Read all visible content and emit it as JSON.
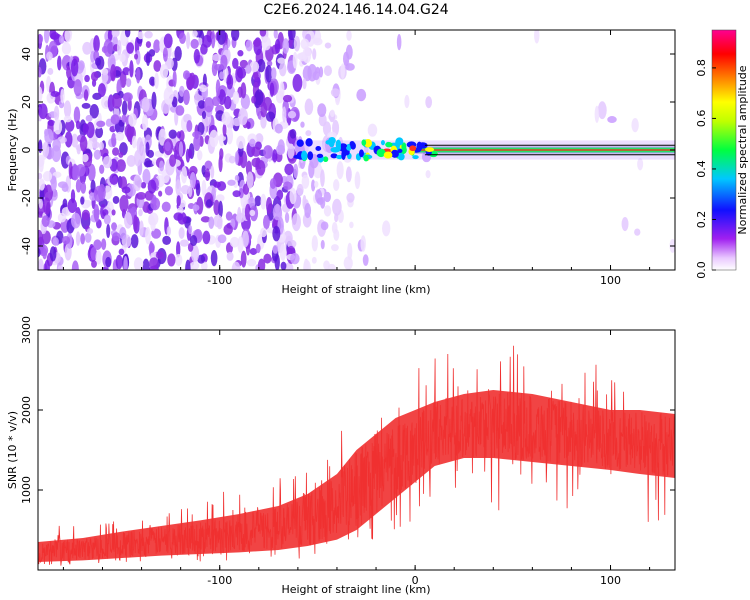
{
  "figure": {
    "title": "C2E6.2024.146.14.04.G24"
  },
  "chart_data": [
    {
      "type": "heatmap",
      "xlabel": "Height of straight line (km)",
      "ylabel": "Frequency (Hz)",
      "xlim": [
        -193,
        133
      ],
      "ylim": [
        -50,
        50
      ],
      "x_ticks": [
        -100,
        0,
        100
      ],
      "x_tick_labels": [
        "-100",
        "",
        "100"
      ],
      "y_ticks": [
        -40,
        -20,
        0,
        20,
        40
      ],
      "y_tick_labels": [
        "-40",
        "-20",
        "0",
        "20",
        "40"
      ],
      "colorbar": {
        "label": "Normalized spectral amplitude",
        "range": [
          0,
          0.95
        ],
        "ticks": [
          0.0,
          0.2,
          0.4,
          0.6,
          0.8
        ],
        "tick_labels": [
          "0.0",
          "0.2",
          "0.4",
          "0.6",
          "0.8"
        ],
        "colormap": "hsv-reversed (white, purple, blue, cyan, green, yellow, red, magenta)"
      },
      "reference_lines_hz": [
        2,
        -2
      ],
      "colors": {
        "reference_line": "#000000",
        "noise": "#8a2be2",
        "ridge": "#ff2a2a"
      }
    },
    {
      "type": "line",
      "xlabel": "Height of straight line (km)",
      "ylabel": "SNR (10 * v/v)",
      "xlim": [
        -193,
        133
      ],
      "ylim": [
        0,
        3000
      ],
      "x_ticks": [
        -100,
        0,
        100
      ],
      "x_tick_labels": [
        "-100",
        "0",
        "100"
      ],
      "y_ticks": [
        1000,
        2000,
        3000
      ],
      "y_tick_labels": [
        "1000",
        "2000",
        "3000"
      ],
      "series": [
        {
          "color": "#f03030",
          "x": [
            -193,
            -170,
            -150,
            -130,
            -110,
            -90,
            -70,
            -55,
            -40,
            -30,
            -20,
            -10,
            0,
            10,
            25,
            40,
            60,
            80,
            100,
            115,
            133
          ],
          "lower": [
            100,
            120,
            150,
            180,
            200,
            220,
            250,
            300,
            380,
            500,
            700,
            900,
            1100,
            1300,
            1400,
            1400,
            1350,
            1300,
            1250,
            1200,
            1150
          ],
          "upper": [
            350,
            400,
            480,
            550,
            620,
            700,
            800,
            950,
            1200,
            1500,
            1700,
            1900,
            2000,
            2100,
            2200,
            2250,
            2200,
            2100,
            2000,
            2000,
            1950
          ]
        }
      ]
    }
  ]
}
